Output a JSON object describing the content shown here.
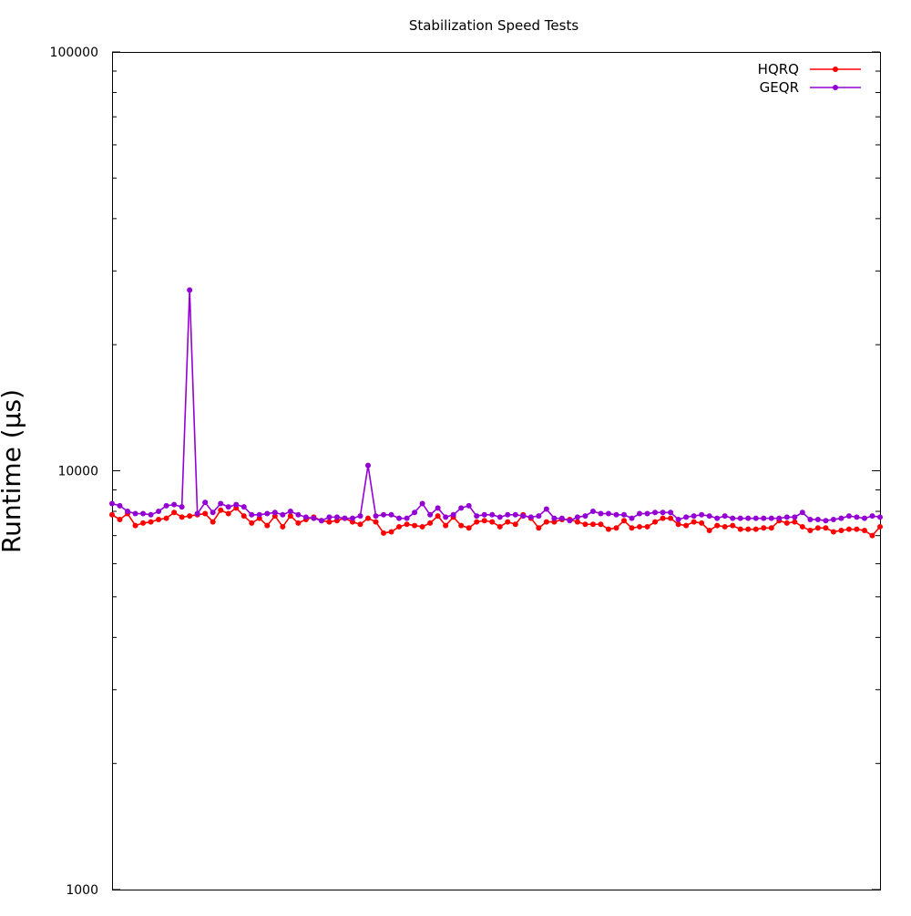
{
  "chart_data": {
    "type": "line",
    "title": "Stabilization Speed Tests",
    "xlabel": "",
    "ylabel": "Runtime (µs)",
    "yscale": "log",
    "ylim": [
      1000,
      100000
    ],
    "xlim": [
      1,
      100
    ],
    "yticks": [
      {
        "value": 1000,
        "label": "1000"
      },
      {
        "value": 10000,
        "label": "10000"
      },
      {
        "value": 100000,
        "label": "100000"
      }
    ],
    "grid": false,
    "legend_position": "top-right",
    "x": [
      1,
      2,
      3,
      4,
      5,
      6,
      7,
      8,
      9,
      10,
      11,
      12,
      13,
      14,
      15,
      16,
      17,
      18,
      19,
      20,
      21,
      22,
      23,
      24,
      25,
      26,
      27,
      28,
      29,
      30,
      31,
      32,
      33,
      34,
      35,
      36,
      37,
      38,
      39,
      40,
      41,
      42,
      43,
      44,
      45,
      46,
      47,
      48,
      49,
      50,
      51,
      52,
      53,
      54,
      55,
      56,
      57,
      58,
      59,
      60,
      61,
      62,
      63,
      64,
      65,
      66,
      67,
      68,
      69,
      70,
      71,
      72,
      73,
      74,
      75,
      76,
      77,
      78,
      79,
      80,
      81,
      82,
      83,
      84,
      85,
      86,
      87,
      88,
      89,
      90,
      91,
      92,
      93,
      94,
      95,
      96,
      97,
      98,
      99,
      100
    ],
    "series": [
      {
        "name": "HQRQ",
        "color": "#ff0000",
        "values": [
          7850,
          7650,
          7900,
          7400,
          7500,
          7550,
          7650,
          7700,
          7950,
          7750,
          7800,
          7850,
          7900,
          7550,
          8050,
          7900,
          8150,
          7800,
          7500,
          7700,
          7400,
          7800,
          7350,
          7800,
          7500,
          7650,
          7750,
          7600,
          7550,
          7600,
          7700,
          7550,
          7450,
          7700,
          7550,
          7100,
          7150,
          7350,
          7450,
          7400,
          7350,
          7500,
          7800,
          7400,
          7750,
          7400,
          7300,
          7550,
          7600,
          7550,
          7350,
          7550,
          7450,
          7850,
          7700,
          7300,
          7550,
          7550,
          7650,
          7650,
          7550,
          7450,
          7450,
          7450,
          7250,
          7300,
          7600,
          7300,
          7350,
          7350,
          7550,
          7700,
          7700,
          7450,
          7400,
          7550,
          7500,
          7200,
          7400,
          7350,
          7400,
          7250,
          7250,
          7250,
          7300,
          7300,
          7600,
          7500,
          7550,
          7350,
          7200,
          7300,
          7300,
          7150,
          7200,
          7250,
          7250,
          7200,
          7000,
          7350
        ]
      },
      {
        "name": "GEQR",
        "color": "#9400d3",
        "values": [
          8350,
          8250,
          8000,
          7900,
          7900,
          7850,
          8000,
          8250,
          8300,
          8200,
          27000,
          7900,
          8400,
          7950,
          8350,
          8200,
          8300,
          8200,
          7850,
          7850,
          7900,
          7950,
          7850,
          8000,
          7850,
          7750,
          7700,
          7600,
          7750,
          7750,
          7700,
          7700,
          7800,
          10300,
          7800,
          7850,
          7850,
          7700,
          7700,
          7950,
          8350,
          7850,
          8150,
          7750,
          7850,
          8150,
          8250,
          7800,
          7850,
          7850,
          7750,
          7850,
          7850,
          7800,
          7750,
          7800,
          8100,
          7700,
          7700,
          7600,
          7750,
          7800,
          8000,
          7900,
          7900,
          7850,
          7850,
          7700,
          7900,
          7900,
          7950,
          7950,
          7950,
          7650,
          7750,
          7800,
          7850,
          7800,
          7700,
          7800,
          7700,
          7700,
          7700,
          7700,
          7700,
          7700,
          7700,
          7750,
          7750,
          7950,
          7650,
          7650,
          7600,
          7650,
          7700,
          7800,
          7750,
          7700,
          7800,
          7750
        ]
      }
    ]
  }
}
